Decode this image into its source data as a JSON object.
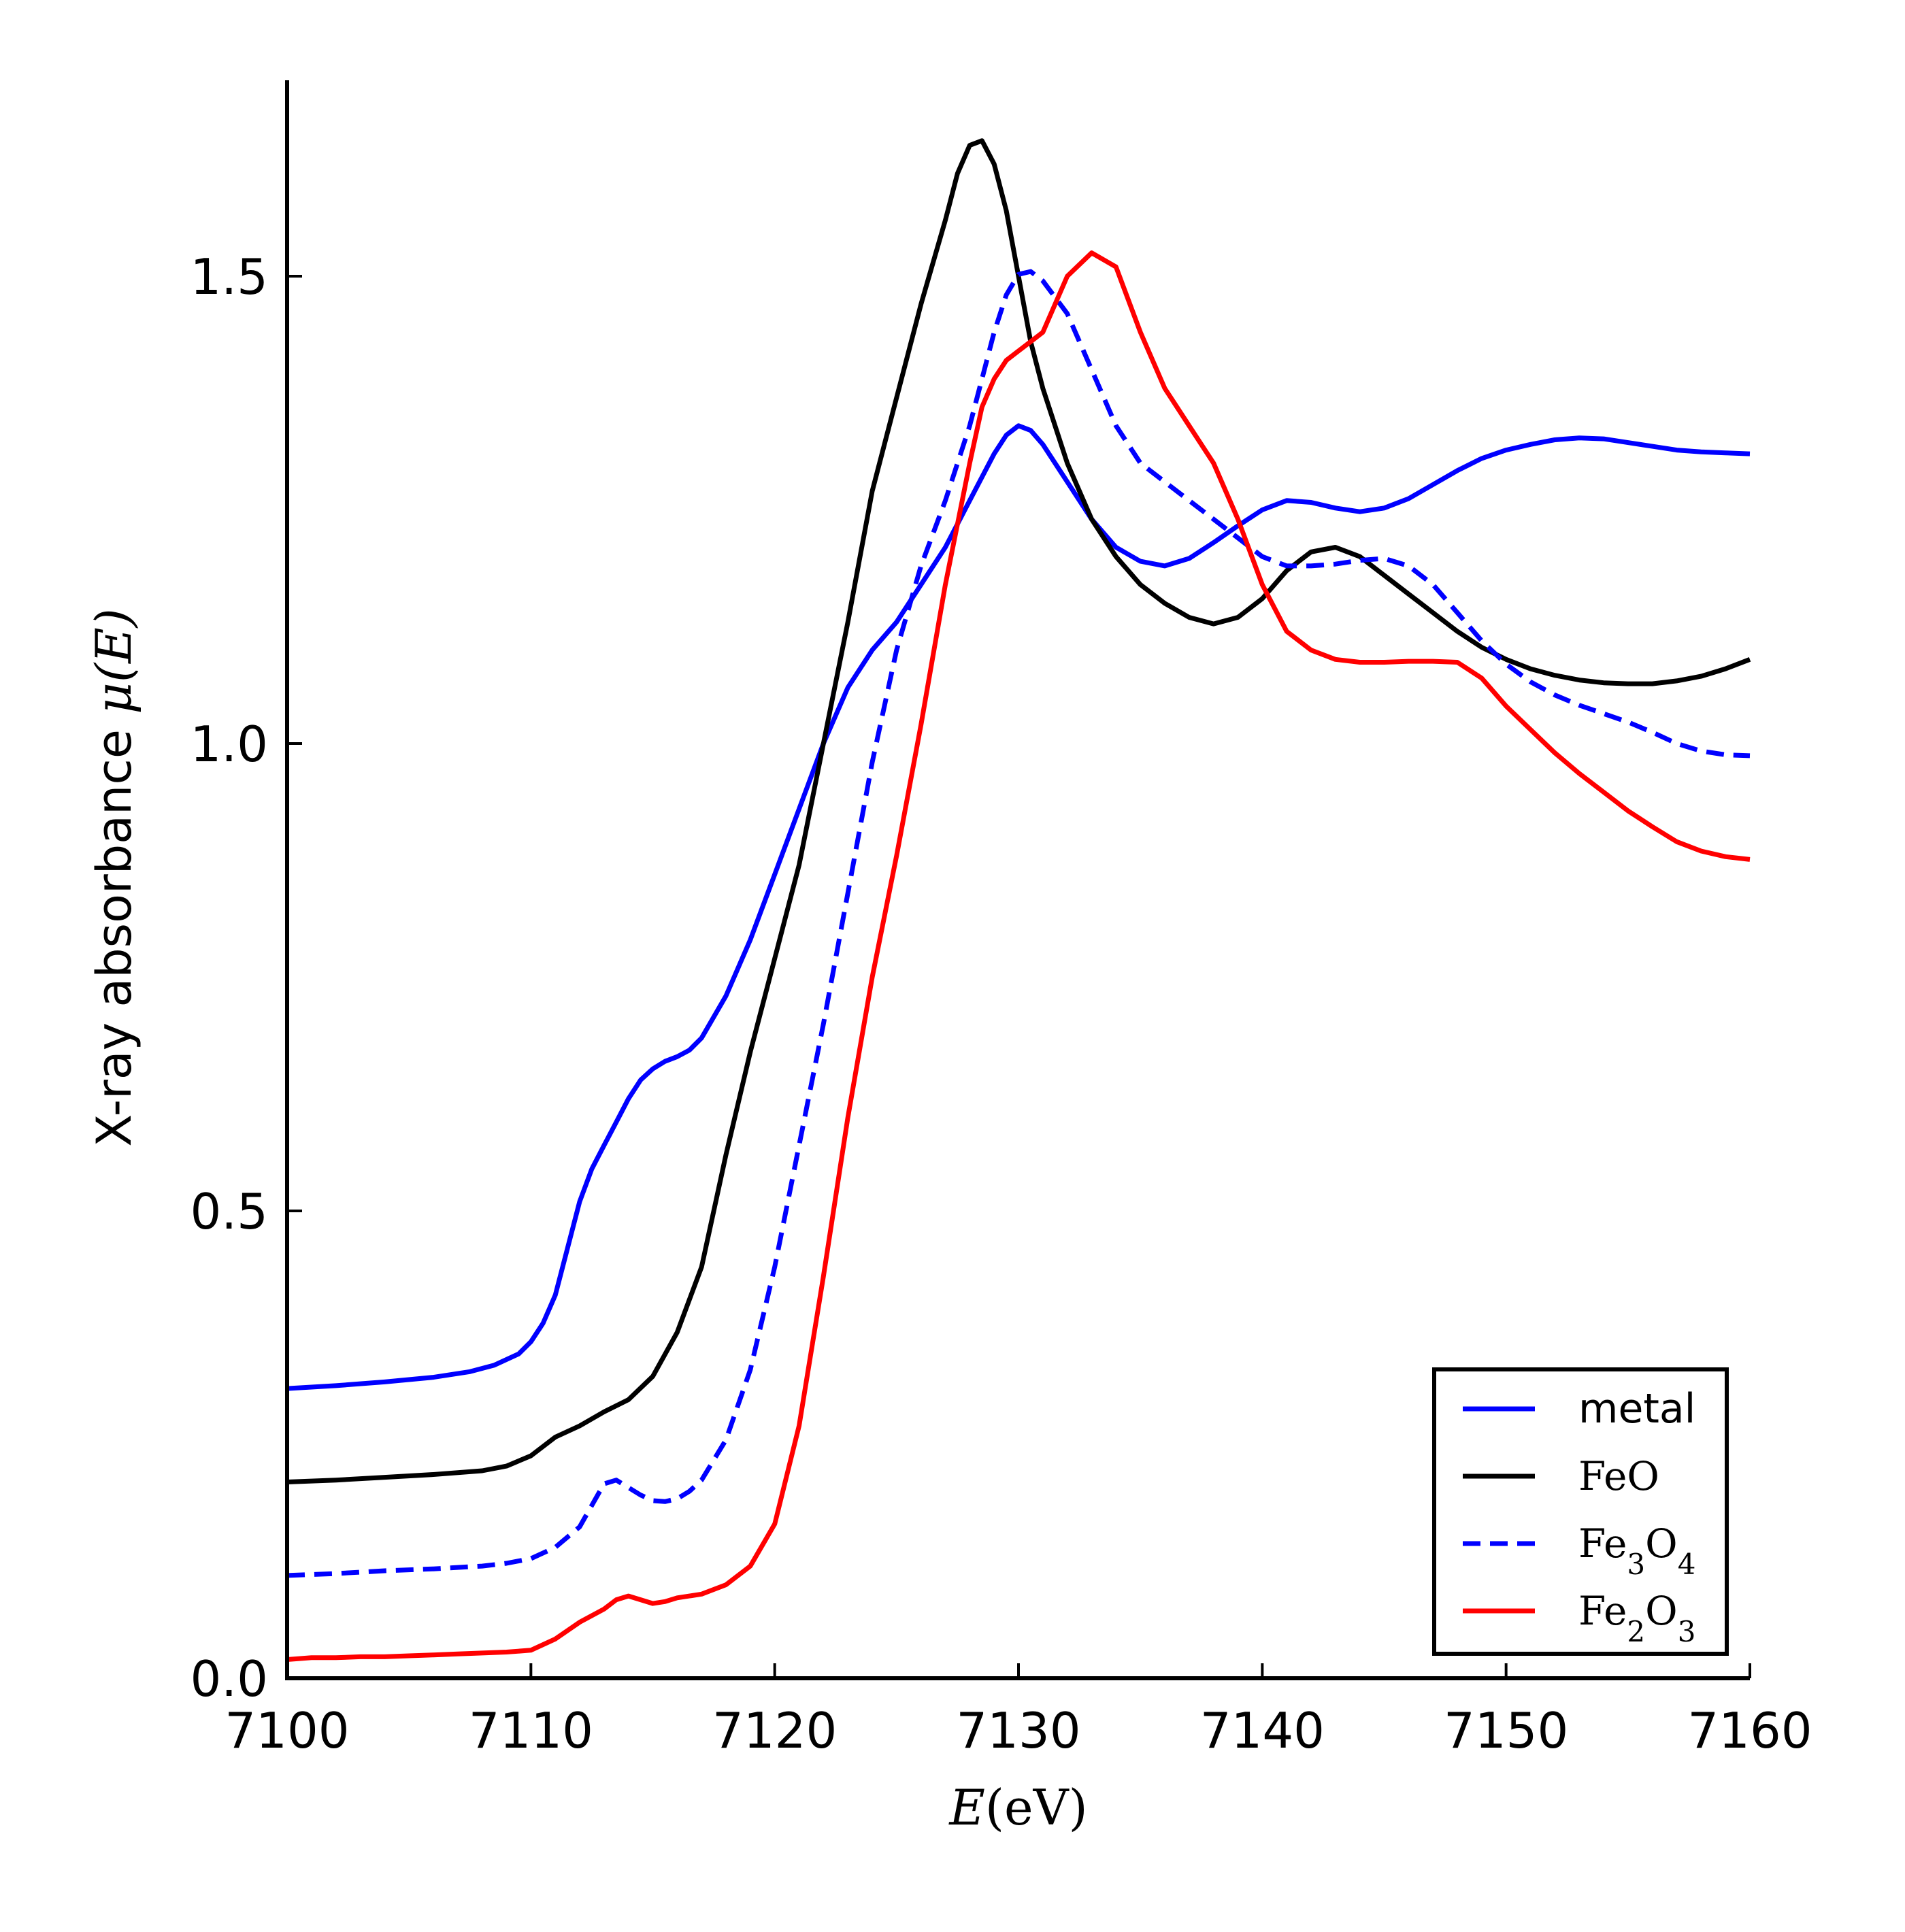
{
  "chart_data": {
    "type": "line",
    "title": "",
    "xlabel_var": "E",
    "xlabel_unit": "(eV)",
    "ylabel_text": "X-ray absorbance ",
    "ylabel_math": "μ(E)",
    "xlim": [
      7100,
      7160
    ],
    "ylim": [
      0.0,
      1.7
    ],
    "xticks": [
      7100,
      7110,
      7120,
      7130,
      7140,
      7150,
      7160
    ],
    "xtick_labels": [
      "7100",
      "7110",
      "7120",
      "7130",
      "7140",
      "7150",
      "7160"
    ],
    "yticks": [
      0.0,
      0.5,
      1.0,
      1.5
    ],
    "ytick_labels": [
      "0.0",
      "0.5",
      "1.0",
      "1.5"
    ],
    "legend_position": "bottom-right",
    "grid": false,
    "series": [
      {
        "name": "metal",
        "color": "#0000ff",
        "dash": "solid",
        "legend_font": "sans",
        "legend_parts": [
          [
            "metal",
            ""
          ]
        ],
        "x": [
          7100,
          7102,
          7104,
          7106,
          7107.5,
          7108.5,
          7109.5,
          7110,
          7110.5,
          7111,
          7111.5,
          7112,
          7112.5,
          7113,
          7113.5,
          7114,
          7114.5,
          7115,
          7115.5,
          7116,
          7116.5,
          7117,
          7118,
          7119,
          7120,
          7121,
          7122,
          7123,
          7124,
          7125,
          7126,
          7127,
          7128,
          7129,
          7129.5,
          7130,
          7130.5,
          7131,
          7132,
          7133,
          7134,
          7135,
          7136,
          7137,
          7138,
          7139,
          7140,
          7141,
          7142,
          7143,
          7144,
          7145,
          7146,
          7147,
          7148,
          7149,
          7150,
          7151,
          7152,
          7153,
          7154,
          7155,
          7156,
          7157,
          7158,
          7159,
          7160
        ],
        "y": [
          0.31,
          0.313,
          0.317,
          0.322,
          0.328,
          0.335,
          0.347,
          0.36,
          0.38,
          0.41,
          0.46,
          0.51,
          0.545,
          0.57,
          0.595,
          0.62,
          0.64,
          0.652,
          0.66,
          0.665,
          0.672,
          0.685,
          0.73,
          0.79,
          0.86,
          0.93,
          1.0,
          1.06,
          1.1,
          1.13,
          1.17,
          1.21,
          1.26,
          1.31,
          1.33,
          1.34,
          1.335,
          1.32,
          1.28,
          1.24,
          1.21,
          1.195,
          1.19,
          1.198,
          1.215,
          1.233,
          1.25,
          1.26,
          1.258,
          1.252,
          1.248,
          1.252,
          1.262,
          1.277,
          1.292,
          1.305,
          1.314,
          1.32,
          1.325,
          1.327,
          1.326,
          1.322,
          1.318,
          1.314,
          1.312,
          1.311,
          1.31
        ]
      },
      {
        "name": "FeO",
        "color": "#000000",
        "dash": "solid",
        "legend_font": "serif",
        "legend_parts": [
          [
            "FeO",
            ""
          ]
        ],
        "x": [
          7100,
          7102,
          7104,
          7106,
          7108,
          7109,
          7110,
          7111,
          7112,
          7113,
          7114,
          7115,
          7116,
          7117,
          7118,
          7119,
          7120,
          7121,
          7122,
          7123,
          7124,
          7125,
          7126,
          7127,
          7127.5,
          7128,
          7128.5,
          7129,
          7129.5,
          7130,
          7130.5,
          7131,
          7132,
          7133,
          7134,
          7135,
          7136,
          7137,
          7138,
          7139,
          7140,
          7141,
          7142,
          7143,
          7144,
          7145,
          7146,
          7147,
          7148,
          7149,
          7150,
          7151,
          7152,
          7153,
          7154,
          7155,
          7156,
          7157,
          7158,
          7159,
          7160
        ],
        "y": [
          0.21,
          0.212,
          0.215,
          0.218,
          0.222,
          0.227,
          0.238,
          0.258,
          0.27,
          0.285,
          0.298,
          0.323,
          0.37,
          0.44,
          0.56,
          0.67,
          0.77,
          0.87,
          1.0,
          1.13,
          1.27,
          1.37,
          1.47,
          1.56,
          1.61,
          1.64,
          1.645,
          1.62,
          1.57,
          1.5,
          1.43,
          1.38,
          1.3,
          1.24,
          1.2,
          1.17,
          1.15,
          1.135,
          1.128,
          1.135,
          1.155,
          1.185,
          1.205,
          1.21,
          1.2,
          1.18,
          1.16,
          1.14,
          1.12,
          1.103,
          1.09,
          1.08,
          1.073,
          1.068,
          1.065,
          1.064,
          1.064,
          1.067,
          1.072,
          1.08,
          1.09
        ]
      },
      {
        "name": "Fe3O4",
        "color": "#0000ff",
        "dash": "dashed",
        "legend_font": "serif",
        "legend_parts": [
          [
            "Fe",
            ""
          ],
          [
            "3",
            "sub"
          ],
          [
            "O",
            ""
          ],
          [
            "4",
            "sub"
          ]
        ],
        "x": [
          7100,
          7102,
          7104,
          7106,
          7108,
          7109,
          7110,
          7111,
          7112,
          7112.5,
          7113,
          7113.5,
          7114,
          7114.5,
          7115,
          7115.5,
          7116,
          7116.5,
          7117,
          7118,
          7119,
          7120,
          7121,
          7122,
          7123,
          7124,
          7125,
          7126,
          7127,
          7128,
          7128.5,
          7129,
          7129.5,
          7130,
          7130.5,
          7131,
          7132,
          7133,
          7134,
          7135,
          7136,
          7137,
          7138,
          7139,
          7140,
          7141,
          7142,
          7143,
          7144,
          7145,
          7146,
          7147,
          7148,
          7149,
          7150,
          7151,
          7152,
          7153,
          7154,
          7155,
          7156,
          7157,
          7158,
          7159,
          7160
        ],
        "y": [
          0.11,
          0.112,
          0.115,
          0.117,
          0.12,
          0.123,
          0.128,
          0.14,
          0.162,
          0.185,
          0.208,
          0.212,
          0.204,
          0.196,
          0.19,
          0.189,
          0.192,
          0.2,
          0.212,
          0.255,
          0.33,
          0.44,
          0.57,
          0.7,
          0.84,
          0.98,
          1.1,
          1.19,
          1.26,
          1.34,
          1.39,
          1.44,
          1.48,
          1.502,
          1.505,
          1.495,
          1.46,
          1.4,
          1.34,
          1.3,
          1.28,
          1.26,
          1.24,
          1.22,
          1.2,
          1.19,
          1.19,
          1.192,
          1.196,
          1.198,
          1.19,
          1.17,
          1.14,
          1.11,
          1.085,
          1.066,
          1.052,
          1.041,
          1.032,
          1.023,
          1.012,
          1.0,
          0.992,
          0.988,
          0.987
        ]
      },
      {
        "name": "Fe2O3",
        "color": "#ff0000",
        "dash": "solid",
        "legend_font": "serif",
        "legend_parts": [
          [
            "Fe",
            ""
          ],
          [
            "2",
            "sub"
          ],
          [
            "O",
            ""
          ],
          [
            "3",
            "sub"
          ]
        ],
        "x": [
          7100,
          7101,
          7102,
          7103,
          7104,
          7105,
          7106,
          7107,
          7108,
          7109,
          7110,
          7111,
          7112,
          7113,
          7113.5,
          7114,
          7114.5,
          7115,
          7115.5,
          7116,
          7116.5,
          7117,
          7118,
          7119,
          7120,
          7121,
          7122,
          7123,
          7124,
          7125,
          7126,
          7127,
          7128,
          7128.5,
          7129,
          7129.5,
          7130,
          7130.5,
          7131,
          7132,
          7133,
          7134,
          7135,
          7136,
          7137,
          7138,
          7139,
          7140,
          7141,
          7142,
          7143,
          7144,
          7145,
          7146,
          7147,
          7148,
          7149,
          7150,
          7151,
          7152,
          7153,
          7154,
          7155,
          7156,
          7157,
          7158,
          7159,
          7160
        ],
        "y": [
          0.02,
          0.022,
          0.022,
          0.023,
          0.023,
          0.024,
          0.025,
          0.026,
          0.027,
          0.028,
          0.03,
          0.042,
          0.06,
          0.074,
          0.084,
          0.088,
          0.084,
          0.08,
          0.082,
          0.086,
          0.088,
          0.09,
          0.1,
          0.12,
          0.165,
          0.27,
          0.43,
          0.6,
          0.75,
          0.88,
          1.02,
          1.17,
          1.3,
          1.36,
          1.39,
          1.41,
          1.42,
          1.43,
          1.44,
          1.5,
          1.525,
          1.51,
          1.44,
          1.38,
          1.34,
          1.3,
          1.24,
          1.17,
          1.12,
          1.1,
          1.09,
          1.087,
          1.087,
          1.088,
          1.088,
          1.087,
          1.07,
          1.04,
          1.015,
          0.99,
          0.968,
          0.948,
          0.928,
          0.911,
          0.895,
          0.885,
          0.879,
          0.876
        ]
      }
    ]
  }
}
